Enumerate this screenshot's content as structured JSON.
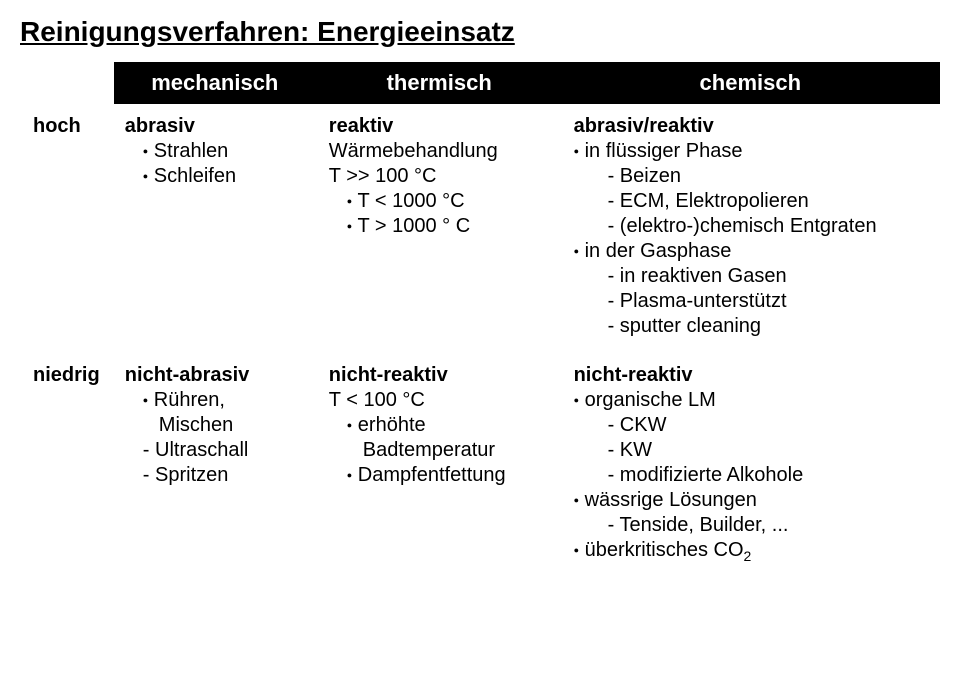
{
  "title": "Reinigungsverfahren: Energieeinsatz",
  "headers": {
    "mechanisch": "mechanisch",
    "thermisch": "thermisch",
    "chemisch": "chemisch"
  },
  "levels": {
    "hoch": "hoch",
    "niedrig": "niedrig"
  },
  "hoch": {
    "mechanisch": {
      "heading": "abrasiv",
      "items": [
        "Strahlen",
        "Schleifen"
      ]
    },
    "thermisch": {
      "heading": "reaktiv",
      "line1": "Wärmebehandlung",
      "line2": "T >> 100 °C",
      "sub": [
        "T < 1000 °C",
        "T > 1000 ° C"
      ]
    },
    "chemisch": {
      "heading": "abrasiv/reaktiv",
      "b1": "in flüssiger Phase",
      "b1_dash": [
        "- Beizen",
        "- ECM, Elektropolieren",
        "- (elektro-)chemisch Entgraten"
      ],
      "b2": "in der Gasphase",
      "b2_dash": [
        "- in reaktiven Gasen",
        "- Plasma-unterstützt",
        "- sputter cleaning"
      ]
    }
  },
  "niedrig": {
    "mechanisch": {
      "heading": "nicht-abrasiv",
      "b1": "Rühren,",
      "b1_line2": "Mischen",
      "dash": [
        "- Ultraschall",
        "- Spritzen"
      ]
    },
    "thermisch": {
      "heading": "nicht-reaktiv",
      "line1": "T < 100 °C",
      "b1": "erhöhte",
      "b1_line2": "Badtemperatur",
      "b2": "Dampfentfettung"
    },
    "chemisch": {
      "heading": "nicht-reaktiv",
      "b1": "organische LM",
      "b1_dash": [
        "- CKW",
        "- KW",
        "- modifizierte Alkohole"
      ],
      "b2": "wässrige Lösungen",
      "b2_dash": [
        "- Tenside, Builder, ..."
      ],
      "b3_pre": "überkritisches CO",
      "b3_sub": "2"
    }
  }
}
